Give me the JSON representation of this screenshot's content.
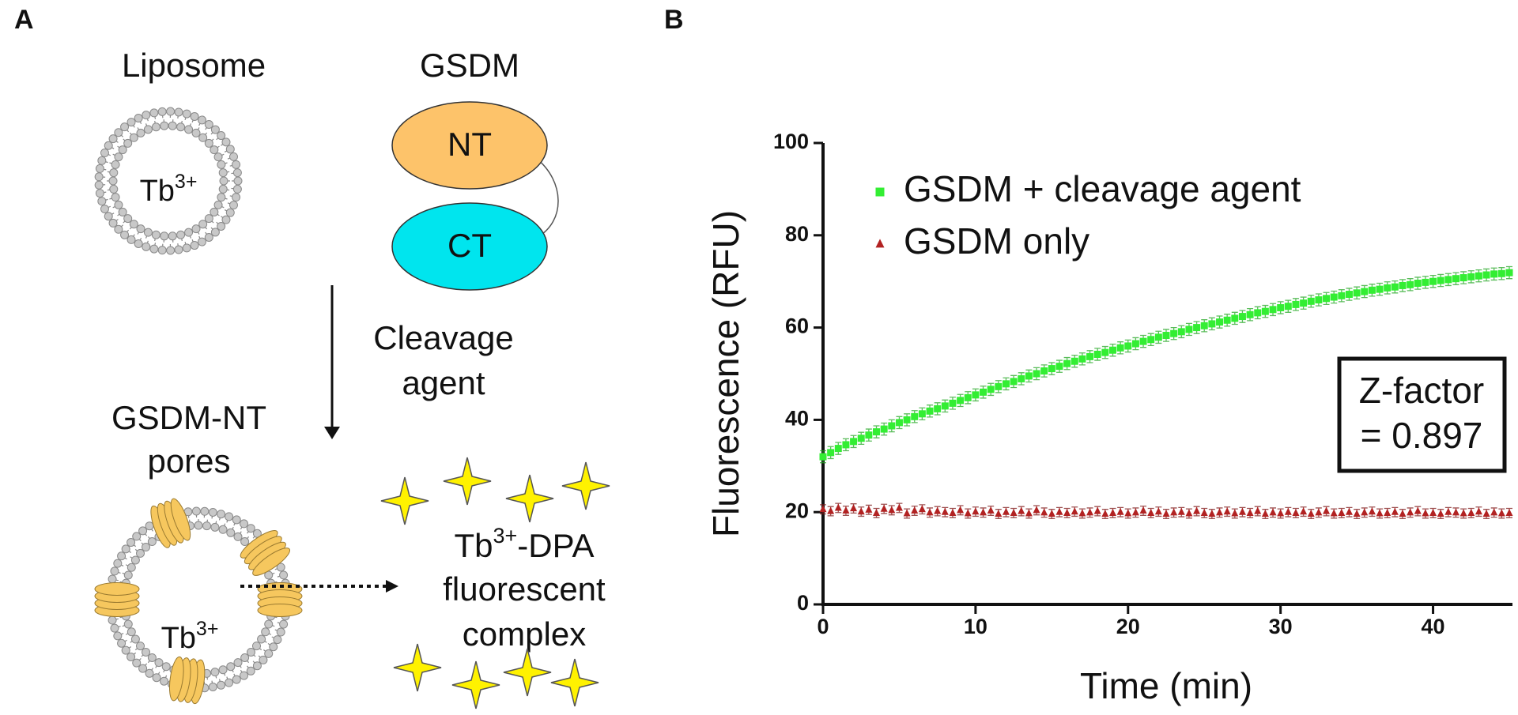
{
  "panel_labels": [
    "A",
    "B"
  ],
  "diagram": {
    "liposome": "Liposome",
    "gsdm": "GSDM",
    "nt": "NT",
    "ct": "CT",
    "ion": "Tb",
    "ion_charge": "3+",
    "cleavage": [
      "Cleavage",
      "agent"
    ],
    "pores": [
      "GSDM-NT",
      "pores"
    ],
    "complex": {
      "ion": "Tb",
      "charge": "3+",
      "rest": "-DPA",
      "lines": [
        "fluorescent",
        "complex"
      ]
    }
  },
  "chart_data": {
    "type": "scatter",
    "x_label": "Time (min)",
    "y_label": "Fluorescence (RFU)",
    "xlim": [
      0,
      45
    ],
    "ylim": [
      0,
      100
    ],
    "xticks": [
      0,
      10,
      20,
      30,
      40
    ],
    "yticks": [
      0,
      20,
      40,
      60,
      80,
      100
    ],
    "legend": "upper left",
    "annotation": [
      "Z-factor",
      "= 0.897"
    ],
    "x": [
      0,
      0.5,
      1,
      1.5,
      2,
      2.5,
      3,
      3.5,
      4,
      4.5,
      5,
      5.5,
      6,
      6.5,
      7,
      7.5,
      8,
      8.5,
      9,
      9.5,
      10,
      10.5,
      11,
      11.5,
      12,
      12.5,
      13,
      13.5,
      14,
      14.5,
      15,
      15.5,
      16,
      16.5,
      17,
      17.5,
      18,
      18.5,
      19,
      19.5,
      20,
      20.5,
      21,
      21.5,
      22,
      22.5,
      23,
      23.5,
      24,
      24.5,
      25,
      25.5,
      26,
      26.5,
      27,
      27.5,
      28,
      28.5,
      29,
      29.5,
      30,
      30.5,
      31,
      31.5,
      32,
      32.5,
      33,
      33.5,
      34,
      34.5,
      35,
      35.5,
      36,
      36.5,
      37,
      37.5,
      38,
      38.5,
      39,
      39.5,
      40,
      40.5,
      41,
      41.5,
      42,
      42.5,
      43,
      43.5,
      44,
      44.5,
      45
    ],
    "series": [
      {
        "name": "GSDM + cleavage agent",
        "color": "#33ee33",
        "marker": "square",
        "error": 1.3,
        "values": [
          32.0,
          32.9,
          33.8,
          34.6,
          35.3,
          36.0,
          36.7,
          37.4,
          38.0,
          38.7,
          39.4,
          40.0,
          40.7,
          41.3,
          41.9,
          42.4,
          43.0,
          43.6,
          44.2,
          44.8,
          45.4,
          46.0,
          46.6,
          47.2,
          47.8,
          48.3,
          48.9,
          49.5,
          50.0,
          50.6,
          51.1,
          51.6,
          52.2,
          52.7,
          53.2,
          53.7,
          54.2,
          54.6,
          55.1,
          55.6,
          56.0,
          56.5,
          57.0,
          57.4,
          57.9,
          58.3,
          58.7,
          59.1,
          59.6,
          60.0,
          60.4,
          60.8,
          61.2,
          61.6,
          62.0,
          62.4,
          62.8,
          63.2,
          63.5,
          63.9,
          64.3,
          64.6,
          65.0,
          65.3,
          65.7,
          66.0,
          66.3,
          66.6,
          66.9,
          67.2,
          67.5,
          67.8,
          68.1,
          68.3,
          68.6,
          68.8,
          69.1,
          69.3,
          69.6,
          69.8,
          70.0,
          70.2,
          70.4,
          70.6,
          70.8,
          71.0,
          71.2,
          71.4,
          71.6,
          71.7,
          71.9
        ]
      },
      {
        "name": "GSDM only",
        "color": "#b22222",
        "marker": "triangle",
        "error": 1.0,
        "values": [
          20.6,
          20.2,
          20.9,
          20.3,
          20.8,
          20.1,
          20.5,
          19.8,
          20.7,
          20.4,
          20.9,
          19.7,
          20.3,
          20.6,
          19.9,
          20.2,
          20.0,
          19.8,
          20.4,
          19.7,
          20.1,
          19.9,
          20.3,
          19.6,
          20.0,
          19.8,
          20.2,
          19.7,
          20.4,
          19.9,
          19.6,
          20.0,
          19.8,
          20.1,
          19.7,
          19.9,
          20.2,
          19.6,
          19.8,
          20.0,
          19.7,
          19.9,
          20.3,
          19.8,
          20.1,
          19.6,
          19.9,
          20.0,
          19.7,
          20.2,
          19.8,
          19.6,
          19.9,
          20.1,
          19.7,
          20.0,
          19.8,
          20.2,
          19.6,
          19.9,
          19.7,
          20.0,
          19.8,
          20.1,
          19.6,
          19.9,
          20.2,
          19.7,
          19.8,
          20.0,
          19.6,
          19.9,
          20.1,
          19.7,
          19.8,
          20.0,
          19.6,
          19.9,
          20.2,
          19.7,
          19.8,
          19.6,
          20.0,
          19.9,
          19.7,
          19.8,
          20.1,
          19.6,
          19.9,
          19.7,
          19.8
        ]
      }
    ]
  }
}
